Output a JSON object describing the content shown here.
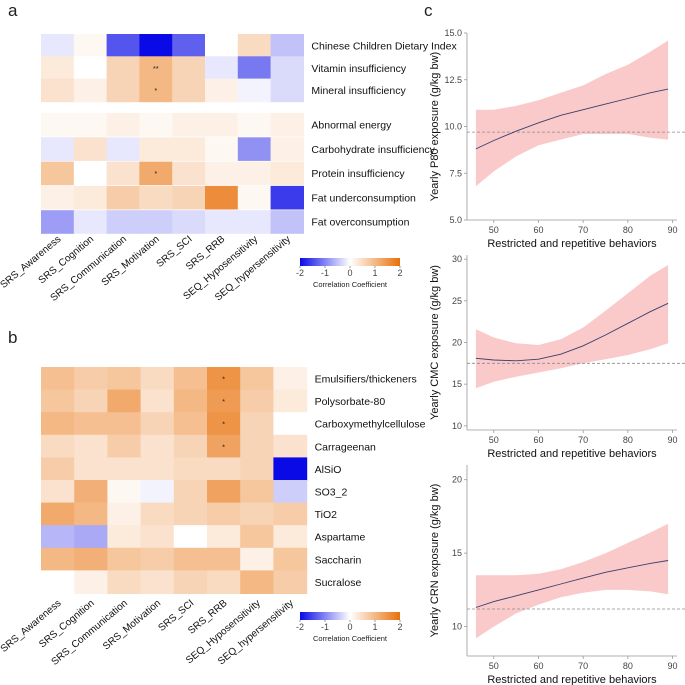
{
  "panels": {
    "a": "a",
    "b": "b",
    "c": "c"
  },
  "chart_data": [
    {
      "type": "heatmap",
      "panel": "a",
      "columns": [
        "SRS_Awareness",
        "SRS_Cognition",
        "SRS_Communication",
        "SRS_Motivation",
        "SRS_SCI",
        "SRS_RRB",
        "SEQ_Hyposensitivity",
        "SEQ_hypersensitivity"
      ],
      "rows": [
        "Chinese Children Dietary Index",
        "Vitamin insufficiency",
        "Mineral insufficiency",
        "Abnormal energy",
        "Carbohydrate insufficiency",
        "Protein insufficiency",
        "Fat underconsumption",
        "Fat overconsumption"
      ],
      "values": [
        [
          -0.2,
          0.1,
          -1.4,
          -2.0,
          -1.3,
          0.0,
          0.5,
          -0.5
        ],
        [
          0.3,
          0.0,
          0.6,
          1.0,
          0.6,
          -0.2,
          -1.1,
          -0.3
        ],
        [
          0.4,
          0.2,
          0.6,
          1.0,
          0.6,
          0.2,
          -0.1,
          -0.3
        ],
        [
          0.1,
          0.1,
          0.2,
          0.1,
          0.2,
          0.2,
          0.1,
          0.2
        ],
        [
          -0.2,
          0.4,
          -0.2,
          0.3,
          0.3,
          0.1,
          -0.9,
          0.2
        ],
        [
          0.8,
          0.0,
          0.4,
          1.2,
          0.4,
          0.2,
          0.2,
          0.3
        ],
        [
          0.2,
          0.3,
          0.7,
          0.5,
          0.6,
          1.6,
          0.1,
          -1.6
        ],
        [
          -0.8,
          -0.2,
          -0.4,
          -0.4,
          -0.3,
          -0.2,
          -0.2,
          -0.5
        ]
      ],
      "annotations": [
        {
          "row": 1,
          "col": 3,
          "label": "**"
        },
        {
          "row": 2,
          "col": 3,
          "label": "*"
        },
        {
          "row": 5,
          "col": 3,
          "label": "*"
        }
      ],
      "legend": {
        "title": "Correlation Coefficient",
        "ticks": [
          "-2",
          "-1",
          "0",
          "1",
          "2"
        ],
        "range": [
          -2,
          2
        ]
      }
    },
    {
      "type": "heatmap",
      "panel": "b",
      "columns": [
        "SRS_Awareness",
        "SRS_Cognition",
        "SRS_Communication",
        "SRS_Motivation",
        "SRS_SCI",
        "SRS_RRB",
        "SEQ_Hyposensitivity",
        "SEQ_hypersensitivity"
      ],
      "rows": [
        "Emulsifiers/thickeners",
        "Polysorbate-80",
        "Carboxymethylcellulose",
        "Carrageenan",
        "AlSiO",
        "SO3_2",
        "TiO2",
        "Aspartame",
        "Saccharin",
        "Sucralose"
      ],
      "values": [
        [
          0.9,
          0.7,
          0.8,
          0.5,
          0.9,
          1.5,
          0.8,
          0.2
        ],
        [
          0.8,
          0.6,
          1.2,
          0.4,
          1.0,
          1.4,
          0.7,
          0.3
        ],
        [
          1.0,
          0.9,
          0.9,
          0.6,
          0.9,
          1.5,
          0.6,
          0.0
        ],
        [
          0.5,
          0.4,
          0.7,
          0.4,
          0.6,
          1.3,
          0.6,
          0.4
        ],
        [
          0.7,
          0.4,
          0.4,
          0.4,
          0.5,
          0.5,
          0.6,
          -2.0
        ],
        [
          0.4,
          1.1,
          0.1,
          -0.1,
          0.6,
          1.3,
          0.8,
          -0.4
        ],
        [
          1.2,
          1.0,
          0.2,
          0.5,
          0.6,
          0.7,
          0.6,
          0.7
        ],
        [
          -0.6,
          -0.7,
          0.3,
          0.4,
          0.0,
          0.3,
          0.8,
          0.3
        ],
        [
          1.0,
          1.1,
          0.8,
          0.7,
          0.9,
          0.9,
          0.2,
          0.8
        ],
        [
          0.0,
          0.2,
          0.5,
          0.4,
          0.6,
          0.5,
          1.0,
          0.7
        ]
      ],
      "annotations": [
        {
          "row": 0,
          "col": 5,
          "label": "*"
        },
        {
          "row": 1,
          "col": 5,
          "label": "*"
        },
        {
          "row": 2,
          "col": 5,
          "label": "*"
        },
        {
          "row": 3,
          "col": 5,
          "label": "*"
        }
      ],
      "legend": {
        "title": "Correlation Coefficient",
        "ticks": [
          "-2",
          "-1",
          "0",
          "1",
          "2"
        ],
        "range": [
          -2,
          2
        ]
      }
    },
    {
      "type": "line",
      "panel": "c",
      "xlabel": "Restricted and repetitive behaviors",
      "ylabel": "Yearly P80 exposure (g/kg bw)",
      "xlim": [
        44,
        91
      ],
      "ylim": [
        5.0,
        15.0
      ],
      "xticks": [
        "50",
        "60",
        "70",
        "80",
        "90"
      ],
      "yticks": [
        "5.0",
        "7.5",
        "10.0",
        "12.5",
        "15.0"
      ],
      "reference_y": 9.7,
      "x": [
        46,
        50,
        55,
        60,
        65,
        70,
        75,
        80,
        85,
        89
      ],
      "y": [
        8.8,
        9.25,
        9.75,
        10.2,
        10.6,
        10.9,
        11.2,
        11.5,
        11.8,
        12.0
      ],
      "ci_lower": [
        6.8,
        7.6,
        8.4,
        9.0,
        9.3,
        9.6,
        9.6,
        9.6,
        9.4,
        9.3
      ],
      "ci_upper": [
        10.9,
        10.9,
        11.1,
        11.4,
        11.8,
        12.2,
        12.8,
        13.3,
        14.0,
        14.6
      ]
    },
    {
      "type": "line",
      "panel": "c",
      "xlabel": "Restricted and repetitive behaviors",
      "ylabel": "Yearly CMC exposure (g/kg bw)",
      "xlim": [
        44,
        91
      ],
      "ylim": [
        9.5,
        30.5
      ],
      "xticks": [
        "50",
        "60",
        "70",
        "80",
        "90"
      ],
      "yticks": [
        "10",
        "15",
        "20",
        "25",
        "30"
      ],
      "reference_y": 17.5,
      "x": [
        46,
        50,
        55,
        60,
        65,
        70,
        75,
        80,
        85,
        89
      ],
      "y": [
        18.1,
        17.9,
        17.8,
        18.0,
        18.6,
        19.6,
        20.9,
        22.3,
        23.7,
        24.7
      ],
      "ci_lower": [
        14.5,
        15.3,
        15.9,
        16.4,
        16.9,
        17.5,
        18.0,
        18.5,
        19.2,
        19.9
      ],
      "ci_upper": [
        21.6,
        20.6,
        19.9,
        19.7,
        20.4,
        21.8,
        23.8,
        25.9,
        28.0,
        29.3
      ]
    },
    {
      "type": "line",
      "panel": "c",
      "xlabel": "Restricted and repetitive behaviors",
      "ylabel": "Yearly CRN exposure (g/kg bw)",
      "xlim": [
        44,
        91
      ],
      "ylim": [
        8.0,
        21.0
      ],
      "xticks": [
        "50",
        "60",
        "70",
        "80",
        "90"
      ],
      "yticks": [
        "10",
        "15",
        "20"
      ],
      "reference_y": 11.2,
      "x": [
        46,
        50,
        55,
        60,
        65,
        70,
        75,
        80,
        85,
        89
      ],
      "y": [
        11.3,
        11.7,
        12.1,
        12.5,
        12.9,
        13.3,
        13.7,
        14.0,
        14.3,
        14.5
      ],
      "ci_lower": [
        9.2,
        10.0,
        10.9,
        11.5,
        12.0,
        12.3,
        12.5,
        12.5,
        12.4,
        12.2
      ],
      "ci_upper": [
        13.5,
        13.5,
        13.5,
        13.6,
        13.9,
        14.4,
        15.0,
        15.7,
        16.4,
        17.0
      ]
    }
  ]
}
